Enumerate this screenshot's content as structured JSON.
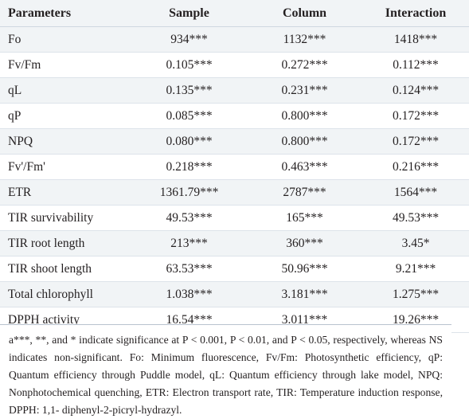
{
  "table": {
    "headers": [
      "Parameters",
      "Sample",
      "Column",
      "Interaction"
    ],
    "rows": [
      [
        "Fo",
        "934***",
        "1132***",
        "1418***"
      ],
      [
        "Fv/Fm",
        "0.105***",
        "0.272***",
        "0.112***"
      ],
      [
        "qL",
        "0.135***",
        "0.231***",
        "0.124***"
      ],
      [
        "qP",
        "0.085***",
        "0.800***",
        "0.172***"
      ],
      [
        "NPQ",
        "0.080***",
        "0.800***",
        "0.172***"
      ],
      [
        "Fv'/Fm'",
        "0.218***",
        "0.463***",
        "0.216***"
      ],
      [
        "ETR",
        "1361.79***",
        "2787***",
        "1564***"
      ],
      [
        "TIR survivability",
        "49.53***",
        "165***",
        "49.53***"
      ],
      [
        "TIR root length",
        "213***",
        "360***",
        "3.45*"
      ],
      [
        "TIR shoot length",
        "63.53***",
        "50.96***",
        "9.21***"
      ],
      [
        "Total chlorophyll",
        "1.038***",
        "3.181***",
        "1.275***"
      ],
      [
        "DPPH activity",
        "16.54***",
        "3.011***",
        "19.26***"
      ]
    ]
  },
  "footnote": "a***, **, and * indicate significance at P < 0.001, P < 0.01, and P < 0.05, respectively, whereas NS indicates non-significant. Fo: Minimum fluorescence, Fv/Fm: Photosynthetic efficiency, qP: Quantum efficiency through Puddle model, qL: Quantum efficiency through lake model, NPQ: Nonphotochemical quenching, ETR: Electron transport rate, TIR: Temperature induction response, DPPH: 1,1- diphenyl-2-picryl-hydrazyl.",
  "colors": {
    "header_bg": "#f1f4f6",
    "stripe_bg": "#f1f4f6",
    "text": "#231f20"
  }
}
